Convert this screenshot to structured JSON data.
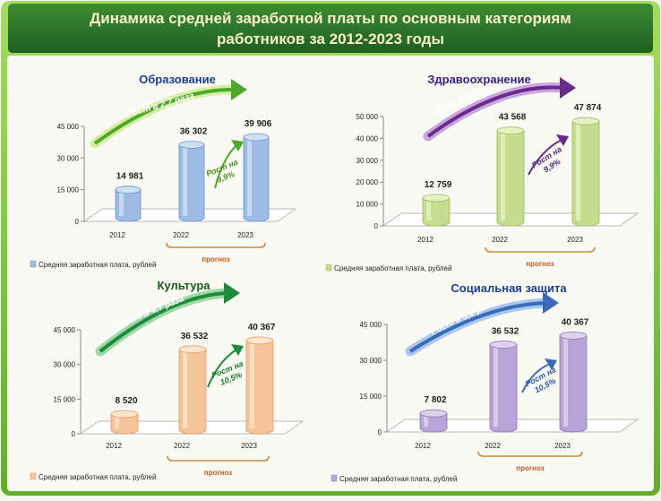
{
  "title": {
    "line1": "Динамика средней заработной платы по основным категориям",
    "line2": "работников за 2012-2023 годы"
  },
  "colors": {
    "frame": "#7ec63c",
    "header": "#2f7a2c",
    "title_text": "#f8f1c8"
  },
  "chart_data": [
    {
      "type": "bar",
      "title": "Образование",
      "categories": [
        "2012",
        "2022",
        "2023"
      ],
      "values": [
        14981,
        36302,
        39906
      ],
      "value_labels": [
        "14 981",
        "36 302",
        "39 906"
      ],
      "ylim": [
        0,
        45000
      ],
      "yticks": [
        0,
        15000,
        30000,
        45000
      ],
      "ytick_labels": [
        "0",
        "15 000",
        "30 000",
        "45 000"
      ],
      "legend": "Средняя заработная плата, рублей",
      "forecast_label": "прогноз",
      "growth_label": "Рост в 2,7 раза",
      "increase_label_1": "Рост на",
      "increase_label_2": "9,9%",
      "title_color": "#1f3a93",
      "bar_color": "#9dbbe4",
      "bar_dark": "#6f93c9",
      "bar_light": "#cfe0f5",
      "arrow_color": "#4ea82a",
      "arrow_light": "#d6efa4",
      "note_color": "#4a8f20"
    },
    {
      "type": "bar",
      "title": "Здравоохранение",
      "categories": [
        "2012",
        "2022",
        "2023"
      ],
      "values": [
        12759,
        43568,
        47874
      ],
      "value_labels": [
        "12 759",
        "43 568",
        "47 874"
      ],
      "ylim": [
        0,
        50000
      ],
      "yticks": [
        0,
        10000,
        20000,
        30000,
        40000,
        50000
      ],
      "ytick_labels": [
        "0",
        "10 000",
        "20 000",
        "30 000",
        "40 000",
        "50 000"
      ],
      "legend": "Средняя заработная плата, рублей",
      "forecast_label": "прогноз",
      "growth_label": "Рост в 3,8 раза",
      "increase_label_1": "Рост на",
      "increase_label_2": "9,9%",
      "title_color": "#3a1f7a",
      "bar_color": "#c6dc8e",
      "bar_dark": "#9bbb5c",
      "bar_light": "#e6f2c4",
      "arrow_color": "#6a2a8c",
      "arrow_light": "#c9a6de",
      "note_color": "#5a2a7c"
    },
    {
      "type": "bar",
      "title": "Культура",
      "categories": [
        "2012",
        "2022",
        "2023"
      ],
      "values": [
        8520,
        36532,
        40367
      ],
      "value_labels": [
        "8 520",
        "36 532",
        "40 367"
      ],
      "ylim": [
        0,
        45000
      ],
      "yticks": [
        0,
        15000,
        30000,
        45000
      ],
      "ytick_labels": [
        "0",
        "15 000",
        "30 000",
        "45 000"
      ],
      "legend": "Средняя заработная плата, рублей",
      "forecast_label": "прогноз",
      "growth_label": "Рост в 4,7 раза",
      "increase_label_1": "Рост на",
      "increase_label_2": "10,5%",
      "title_color": "#1a5a1a",
      "bar_color": "#f6c49a",
      "bar_dark": "#e29a62",
      "bar_light": "#fde4cc",
      "arrow_color": "#1f8a3a",
      "arrow_light": "#9ed8a8",
      "note_color": "#1f7a2a"
    },
    {
      "type": "bar",
      "title": "Социальная защита",
      "categories": [
        "2012",
        "2022",
        "2023"
      ],
      "values": [
        7802,
        36532,
        40367
      ],
      "value_labels": [
        "7 802",
        "36 532",
        "40 367"
      ],
      "ylim": [
        0,
        45000
      ],
      "yticks": [
        0,
        15000,
        30000,
        45000
      ],
      "ytick_labels": [
        "0",
        "15 000",
        "30 000",
        "45 000"
      ],
      "legend": "Средняя заработная плата, рублей",
      "forecast_label": "прогноз",
      "growth_label": "Рост в 5,2 раза",
      "increase_label_1": "Рост на",
      "increase_label_2": "10,5%",
      "title_color": "#1f3a93",
      "bar_color": "#b8a4d6",
      "bar_dark": "#8f78b8",
      "bar_light": "#ddd2ee",
      "arrow_color": "#3a6ab8",
      "arrow_light": "#a8c8ee",
      "note_color": "#2a5aa8"
    }
  ]
}
